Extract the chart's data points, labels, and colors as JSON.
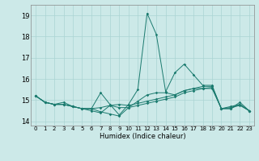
{
  "xlabel": "Humidex (Indice chaleur)",
  "xlim": [
    -0.5,
    23.5
  ],
  "ylim": [
    13.8,
    19.5
  ],
  "yticks": [
    14,
    15,
    16,
    17,
    18,
    19
  ],
  "xticks": [
    0,
    1,
    2,
    3,
    4,
    5,
    6,
    7,
    8,
    9,
    10,
    11,
    12,
    13,
    14,
    15,
    16,
    17,
    18,
    19,
    20,
    21,
    22,
    23
  ],
  "background_color": "#cce9e8",
  "grid_color": "#aad4d3",
  "line_color": "#1a7a6e",
  "series": [
    [
      15.2,
      14.9,
      14.8,
      14.9,
      14.7,
      14.6,
      14.6,
      15.35,
      14.8,
      14.3,
      14.8,
      15.5,
      19.1,
      18.1,
      15.4,
      16.3,
      16.7,
      16.2,
      15.7,
      15.7,
      14.6,
      14.7,
      14.8,
      14.5
    ],
    [
      15.2,
      14.9,
      14.8,
      14.8,
      14.7,
      14.6,
      14.5,
      14.4,
      14.75,
      14.8,
      14.75,
      14.85,
      14.95,
      15.05,
      15.15,
      15.25,
      15.45,
      15.55,
      15.65,
      15.65,
      14.6,
      14.6,
      14.9,
      14.5
    ],
    [
      15.2,
      14.9,
      14.8,
      14.8,
      14.7,
      14.6,
      14.6,
      14.65,
      14.75,
      14.65,
      14.65,
      14.75,
      14.85,
      14.95,
      15.05,
      15.15,
      15.35,
      15.45,
      15.55,
      15.6,
      14.6,
      14.6,
      14.8,
      14.5
    ],
    [
      15.2,
      14.9,
      14.8,
      14.8,
      14.7,
      14.6,
      14.6,
      14.45,
      14.35,
      14.25,
      14.65,
      14.95,
      15.25,
      15.35,
      15.35,
      15.25,
      15.45,
      15.55,
      15.55,
      15.55,
      14.6,
      14.65,
      14.75,
      14.5
    ]
  ]
}
